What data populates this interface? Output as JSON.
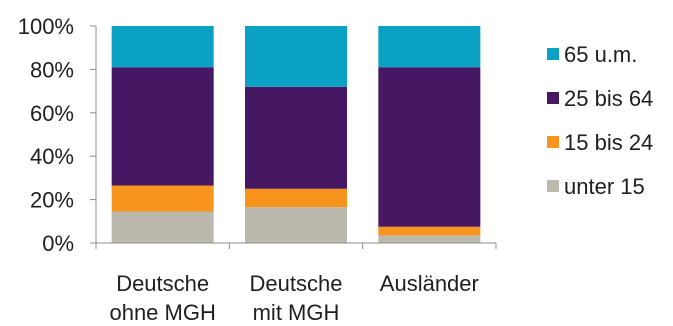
{
  "chart_data": {
    "type": "bar",
    "stacked": true,
    "normalized": true,
    "categories": [
      [
        "Deutsche",
        "ohne MGH"
      ],
      [
        "Deutsche",
        "mit MGH"
      ],
      [
        "Ausländer"
      ]
    ],
    "series": [
      {
        "name": "unter 15",
        "color": "#bcb8ad",
        "values": [
          14.5,
          16.5,
          3.5
        ]
      },
      {
        "name": "15 bis 24",
        "color": "#f7941d",
        "values": [
          12.0,
          8.5,
          4.0
        ]
      },
      {
        "name": "25 bis 64",
        "color": "#461762",
        "values": [
          54.5,
          47.0,
          73.5
        ]
      },
      {
        "name": "65 u.m.",
        "color": "#0aa1c4",
        "values": [
          19.0,
          28.0,
          19.0
        ]
      }
    ],
    "ylim": [
      0,
      100
    ],
    "yticks": [
      "0%",
      "20%",
      "40%",
      "60%",
      "80%",
      "100%"
    ],
    "legend_placement": "right",
    "legend_order": [
      "65 u.m.",
      "25 bis 64",
      "15 bis 24",
      "unter 15"
    ],
    "grid": false
  }
}
